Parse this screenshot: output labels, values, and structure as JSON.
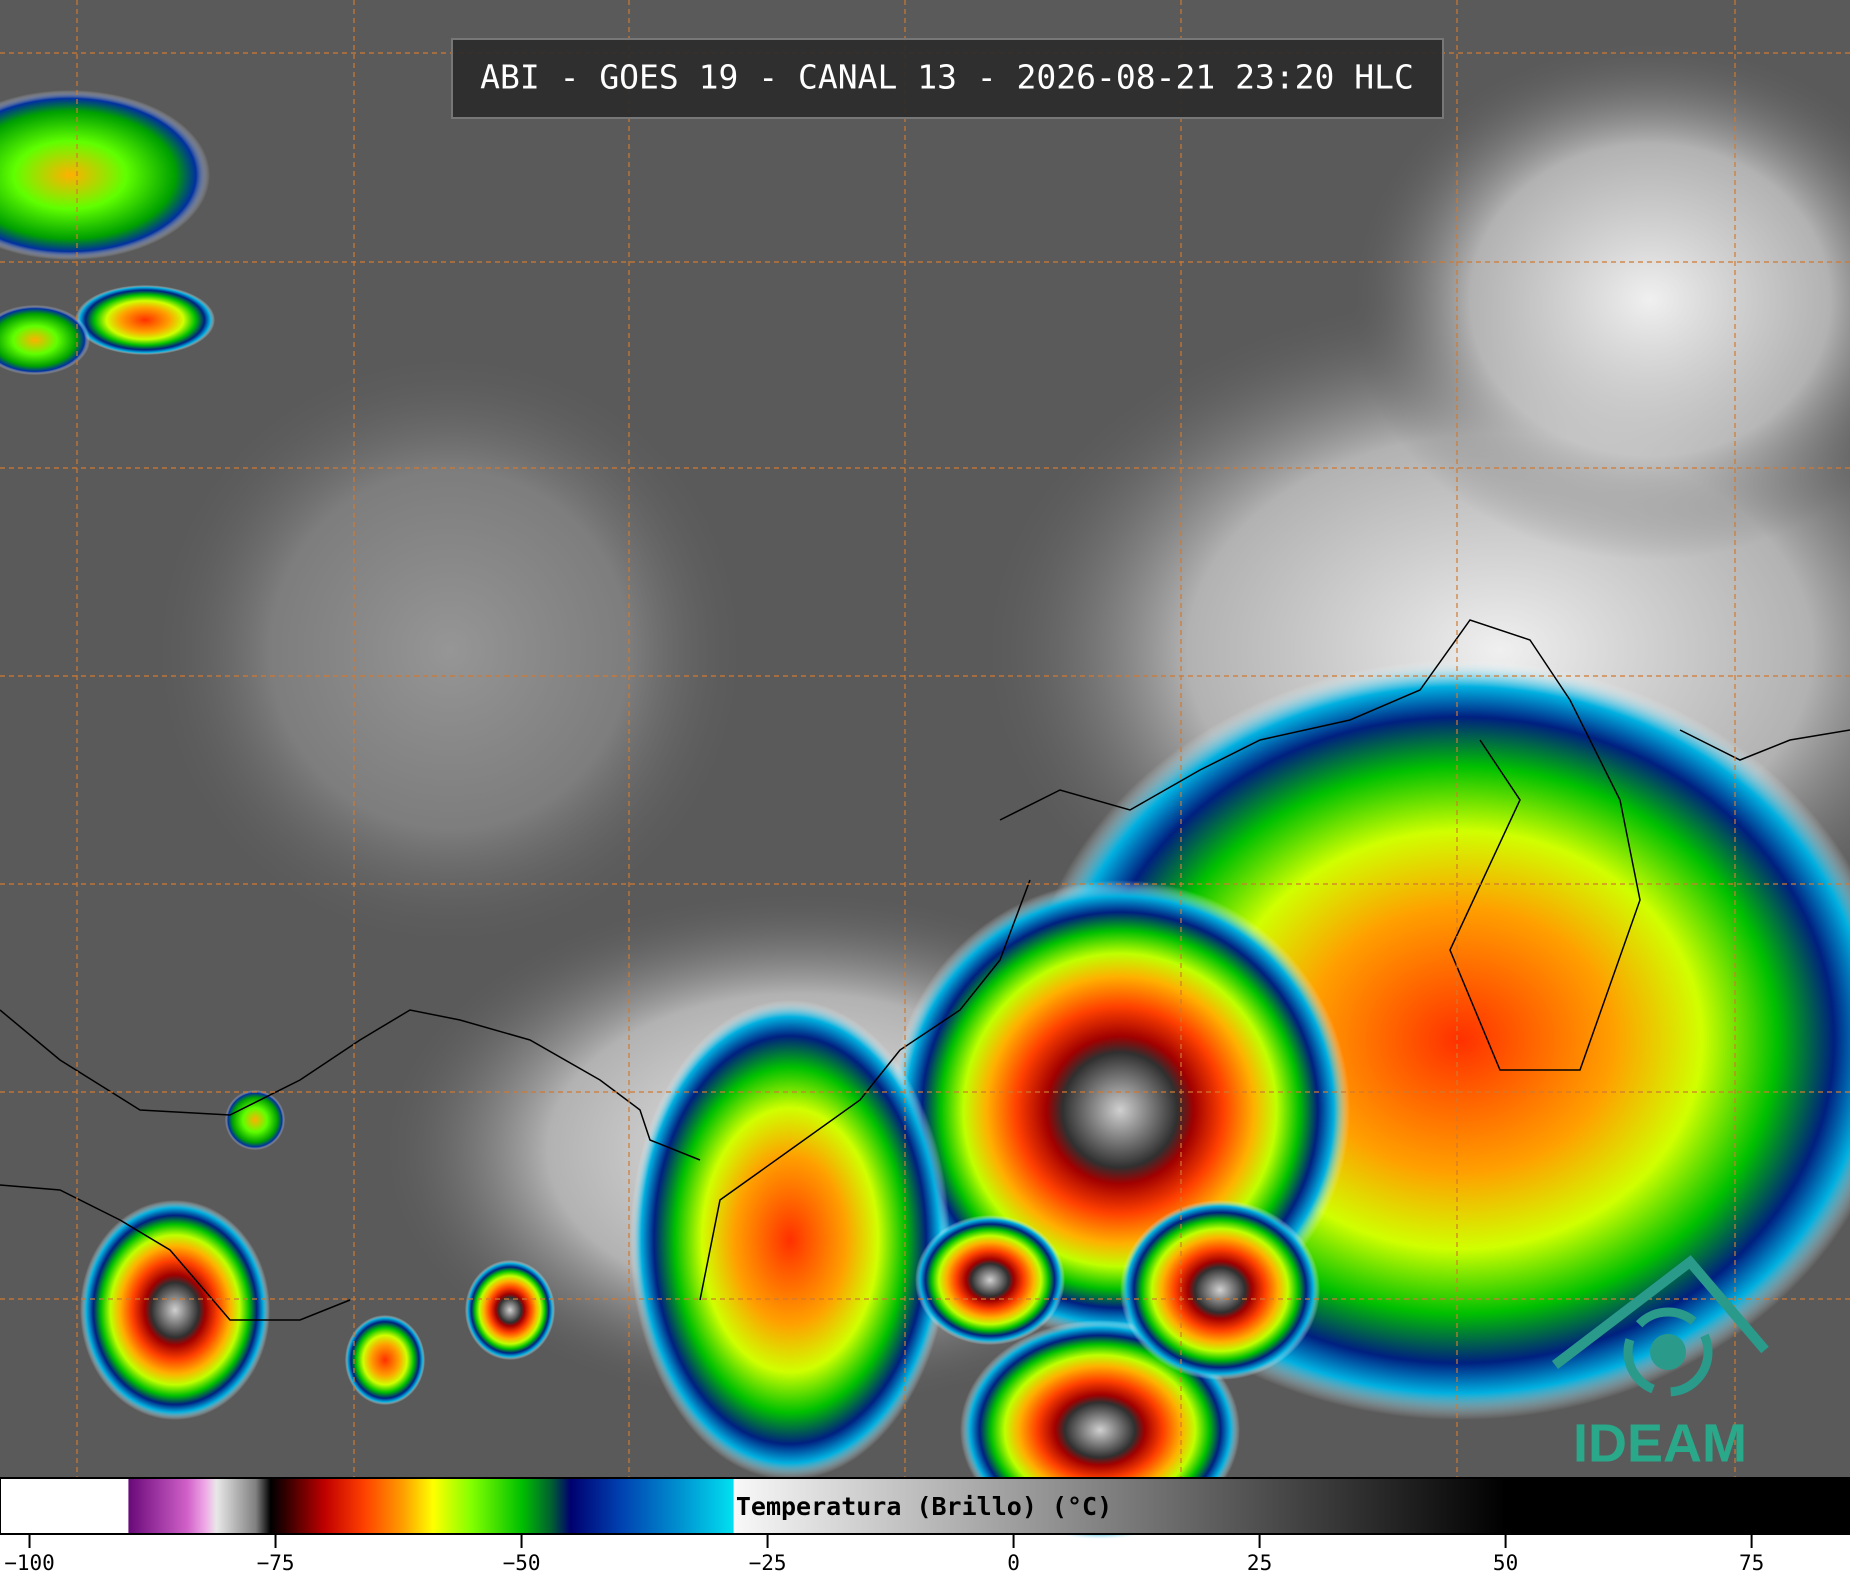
{
  "title": "ABI - GOES 19 - CANAL 13 - 2026-08-21 23:20 HLC",
  "logo": "IDEAM",
  "colorbar": {
    "label": "Temperatura (Brillo) (°C)",
    "range": [
      -103,
      85
    ],
    "ticks": [
      {
        "value": -100,
        "label": "−100"
      },
      {
        "value": -75,
        "label": "−75"
      },
      {
        "value": -50,
        "label": "−50"
      },
      {
        "value": -25,
        "label": "−25"
      },
      0,
      25,
      50,
      75
    ],
    "stops": [
      [
        -103,
        "#ffffff"
      ],
      [
        -90,
        "#ffffff"
      ],
      [
        -89.9,
        "#6a0a7a"
      ],
      [
        -84,
        "#d060c8"
      ],
      [
        -82,
        "#f0b0e8"
      ],
      [
        -81,
        "#e8e8e8"
      ],
      [
        -77,
        "#808080"
      ],
      [
        -75.5,
        "#000000"
      ],
      [
        -74,
        "#300000"
      ],
      [
        -70,
        "#c00000"
      ],
      [
        -66,
        "#ff4000"
      ],
      [
        -62,
        "#ffa000"
      ],
      [
        -59,
        "#ffff00"
      ],
      [
        -55,
        "#80ff00"
      ],
      [
        -50,
        "#00c000"
      ],
      [
        -47,
        "#006030"
      ],
      [
        -45,
        "#000070"
      ],
      [
        -40,
        "#0040b0"
      ],
      [
        -34,
        "#0090d0"
      ],
      [
        -28.5,
        "#00e0f0"
      ],
      [
        -28.4,
        "#f8f8f8"
      ],
      [
        50,
        "#000000"
      ],
      [
        85,
        "#000000"
      ]
    ]
  }
}
